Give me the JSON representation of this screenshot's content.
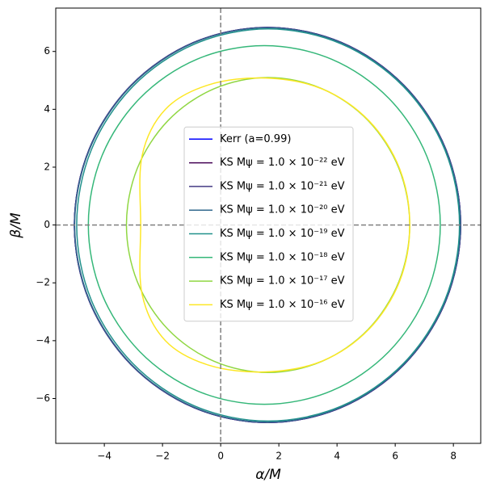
{
  "chart_data": {
    "type": "line",
    "xlabel": "α/M",
    "ylabel": "β/M",
    "xlim": [
      -5.67,
      8.94
    ],
    "ylim": [
      -7.55,
      7.5
    ],
    "xticks": [
      {
        "value": -4,
        "label": "−4"
      },
      {
        "value": -2,
        "label": "−2"
      },
      0,
      2,
      4,
      6,
      8
    ],
    "yticks": [
      {
        "value": -6,
        "label": "−6"
      },
      {
        "value": -4,
        "label": "−4"
      },
      {
        "value": -2,
        "label": "−2"
      },
      0,
      2,
      4,
      6
    ],
    "vlines": [
      0
    ],
    "hlines": [
      0
    ],
    "reference_line_color": "#808080",
    "legend": "center",
    "series": [
      {
        "name": "Kerr (a=0.99)",
        "color": "#0000ff",
        "x": [
          8.25,
          7.74,
          6.3,
          4.15,
          1.61,
          -0.93,
          -3.08,
          -4.52,
          -5.03,
          -4.52,
          -3.08,
          -0.93,
          1.61,
          4.15,
          6.3,
          7.74,
          8.25
        ],
        "values": [
          0,
          2.62,
          4.83,
          6.31,
          6.83,
          6.31,
          4.83,
          2.62,
          0,
          -2.62,
          -4.83,
          -6.31,
          -6.83,
          -6.31,
          -4.83,
          -2.62,
          0
        ]
      },
      {
        "name": "KS Mψ = 1.0 × 10⁻²² eV",
        "color": "#440154",
        "x": [
          8.25,
          7.74,
          6.3,
          4.15,
          1.61,
          -0.93,
          -3.08,
          -4.52,
          -5.03,
          -4.52,
          -3.08,
          -0.93,
          1.61,
          4.15,
          6.3,
          7.74,
          8.25
        ],
        "values": [
          0,
          2.62,
          4.83,
          6.31,
          6.83,
          6.31,
          4.83,
          2.62,
          0,
          -2.62,
          -4.83,
          -6.31,
          -6.83,
          -6.31,
          -4.83,
          -2.62,
          0
        ]
      },
      {
        "name": "KS Mψ = 1.0 × 10⁻²¹ eV",
        "color": "#443983",
        "x": [
          8.25,
          7.74,
          6.3,
          4.15,
          1.61,
          -0.93,
          -3.08,
          -4.52,
          -5.03,
          -4.52,
          -3.08,
          -0.93,
          1.61,
          4.15,
          6.3,
          7.74,
          8.25
        ],
        "values": [
          0,
          2.62,
          4.83,
          6.31,
          6.83,
          6.31,
          4.83,
          2.62,
          0,
          -2.62,
          -4.83,
          -6.31,
          -6.83,
          -6.31,
          -4.83,
          -2.62,
          0
        ]
      },
      {
        "name": "KS Mψ = 1.0 × 10⁻²⁰ eV",
        "color": "#31688e",
        "x": [
          8.24,
          7.73,
          6.29,
          4.14,
          1.61,
          -0.92,
          -3.07,
          -4.51,
          -5.02,
          -4.51,
          -3.07,
          -0.92,
          1.61,
          4.14,
          6.29,
          7.73,
          8.24
        ],
        "values": [
          0,
          2.61,
          4.82,
          6.3,
          6.82,
          6.3,
          4.82,
          2.61,
          0,
          -2.61,
          -4.82,
          -6.3,
          -6.82,
          -6.3,
          -4.82,
          -2.61,
          0
        ]
      },
      {
        "name": "KS Mψ = 1.0 × 10⁻¹⁹ eV",
        "color": "#21918c",
        "x": [
          8.21,
          7.71,
          6.28,
          4.15,
          1.63,
          -0.89,
          -3.02,
          -4.45,
          -4.95,
          -4.45,
          -3.02,
          -0.89,
          1.63,
          4.15,
          6.28,
          7.71,
          8.21
        ],
        "values": [
          0,
          2.59,
          4.79,
          6.26,
          6.78,
          6.26,
          4.79,
          2.59,
          0,
          -2.59,
          -4.79,
          -6.26,
          -6.78,
          -6.26,
          -4.79,
          -2.59,
          0
        ]
      },
      {
        "name": "KS Mψ = 1.0 × 10⁻¹⁸ eV",
        "color": "#35b779",
        "x": [
          7.55,
          7.09,
          5.78,
          3.82,
          1.5,
          -0.82,
          -2.78,
          -4.09,
          -4.55,
          -4.09,
          -2.78,
          -0.82,
          1.5,
          3.82,
          5.78,
          7.09,
          7.55
        ],
        "values": [
          0,
          2.37,
          4.38,
          5.73,
          6.2,
          5.73,
          4.38,
          2.37,
          0,
          -2.37,
          -4.38,
          -5.73,
          -6.2,
          -5.73,
          -4.38,
          -2.37,
          0
        ]
      },
      {
        "name": "KS Mψ = 1.0 × 10⁻¹⁷ eV",
        "color": "#90d743",
        "x": [
          6.5,
          6.13,
          5.07,
          3.49,
          1.63,
          -0.23,
          -1.81,
          -2.87,
          -3.24,
          -2.87,
          -1.81,
          -0.23,
          1.63,
          3.49,
          5.07,
          6.13,
          6.5
        ],
        "values": [
          0,
          1.95,
          3.61,
          4.71,
          5.1,
          4.71,
          3.61,
          1.95,
          0,
          -1.95,
          -3.61,
          -4.71,
          -5.1,
          -4.71,
          -3.61,
          -1.95,
          0
        ]
      },
      {
        "name": "KS Mψ = 1.0 × 10⁻¹⁶ eV",
        "color": "#fde725",
        "x": [
          6.5,
          6.15,
          5.1,
          3.5,
          1.55,
          -0.4,
          -1.9,
          -2.7,
          -2.75,
          -2.7,
          -1.9,
          -0.4,
          1.55,
          3.5,
          5.1,
          6.15,
          6.5
        ],
        "values": [
          0,
          1.95,
          3.6,
          4.7,
          5.08,
          4.85,
          4.0,
          2.4,
          0,
          -2.4,
          -4.0,
          -4.85,
          -5.08,
          -4.7,
          -3.6,
          -1.95,
          0
        ]
      }
    ]
  }
}
